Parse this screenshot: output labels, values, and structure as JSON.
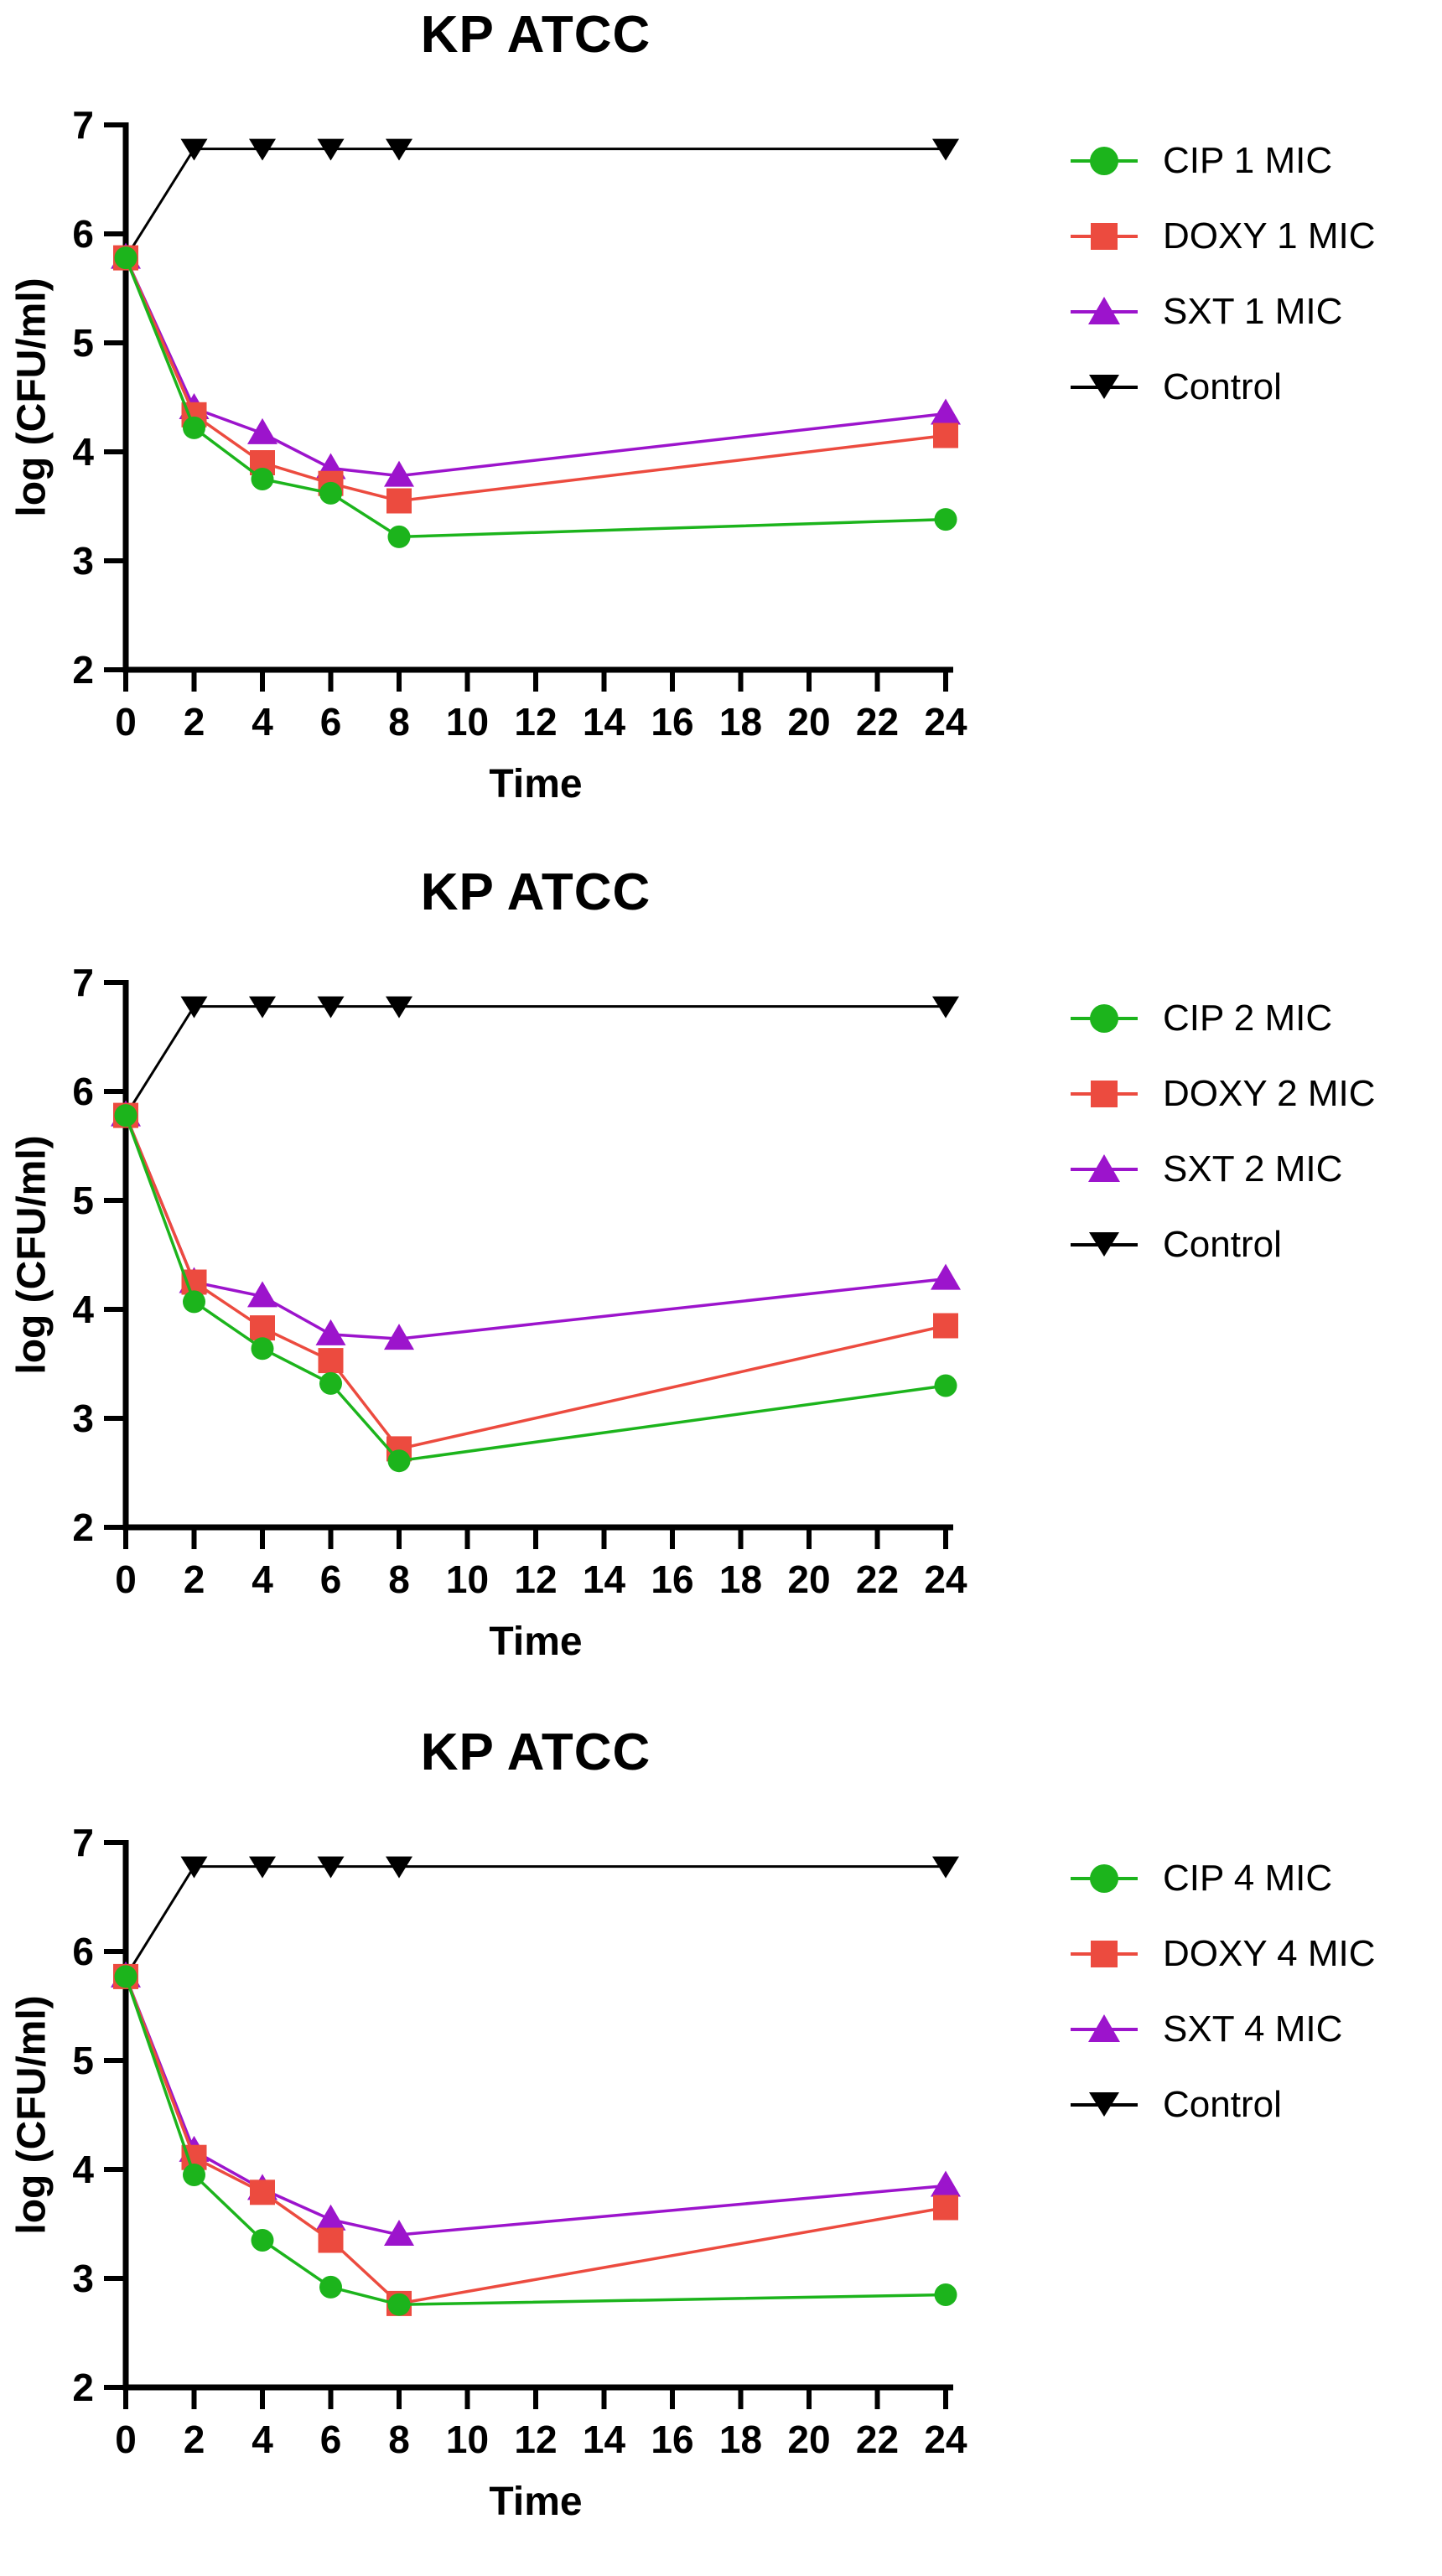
{
  "figure": {
    "background": "#FFFFFF",
    "text_color": "#000000"
  },
  "chart_data": [
    {
      "type": "line",
      "title": "KP ATCC",
      "xlabel": "Time",
      "ylabel": "log (CFU/ml)",
      "x": [
        0,
        2,
        4,
        6,
        8,
        24
      ],
      "xticks": [
        0,
        2,
        4,
        6,
        8,
        10,
        12,
        14,
        16,
        18,
        20,
        22,
        24
      ],
      "yticks": [
        2,
        3,
        4,
        5,
        6,
        7
      ],
      "ylim": [
        2,
        7
      ],
      "grid": false,
      "legend_position": "right",
      "series": [
        {
          "name": "CIP 1 MIC",
          "marker": "circle",
          "color": "#1CB41C",
          "values": [
            5.78,
            4.22,
            3.75,
            3.62,
            3.22,
            3.38
          ]
        },
        {
          "name": "DOXY 1 MIC",
          "marker": "square",
          "color": "#EC4B3F",
          "values": [
            5.78,
            4.34,
            3.9,
            3.71,
            3.55,
            4.15
          ]
        },
        {
          "name": "SXT 1 MIC",
          "marker": "triangle-up",
          "color": "#9C14CC",
          "values": [
            5.78,
            4.4,
            4.17,
            3.85,
            3.78,
            4.35
          ]
        },
        {
          "name": "Control",
          "marker": "triangle-down",
          "color": "#000000",
          "values": [
            5.78,
            6.78,
            6.78,
            6.78,
            6.78,
            6.78
          ],
          "first_marker": false
        }
      ]
    },
    {
      "type": "line",
      "title": "KP ATCC",
      "xlabel": "Time",
      "ylabel": "log (CFU/ml)",
      "x": [
        0,
        2,
        4,
        6,
        8,
        24
      ],
      "xticks": [
        0,
        2,
        4,
        6,
        8,
        10,
        12,
        14,
        16,
        18,
        20,
        22,
        24
      ],
      "yticks": [
        2,
        3,
        4,
        5,
        6,
        7
      ],
      "ylim": [
        2,
        7
      ],
      "grid": false,
      "legend_position": "right",
      "series": [
        {
          "name": "CIP 2 MIC",
          "marker": "circle",
          "color": "#1CB41C",
          "values": [
            5.78,
            4.07,
            3.64,
            3.32,
            2.61,
            3.3
          ]
        },
        {
          "name": "DOXY 2 MIC",
          "marker": "square",
          "color": "#EC4B3F",
          "values": [
            5.78,
            4.25,
            3.83,
            3.53,
            2.72,
            3.85
          ]
        },
        {
          "name": "SXT 2 MIC",
          "marker": "triangle-up",
          "color": "#9C14CC",
          "values": [
            5.78,
            4.25,
            4.12,
            3.77,
            3.73,
            4.28
          ]
        },
        {
          "name": "Control",
          "marker": "triangle-down",
          "color": "#000000",
          "values": [
            5.78,
            6.78,
            6.78,
            6.78,
            6.78,
            6.78
          ],
          "first_marker": false
        }
      ]
    },
    {
      "type": "line",
      "title": "KP ATCC",
      "xlabel": "Time",
      "ylabel": "log (CFU/ml)",
      "x": [
        0,
        2,
        4,
        6,
        8,
        24
      ],
      "xticks": [
        0,
        2,
        4,
        6,
        8,
        10,
        12,
        14,
        16,
        18,
        20,
        22,
        24
      ],
      "yticks": [
        2,
        3,
        4,
        5,
        6,
        7
      ],
      "ylim": [
        2,
        7
      ],
      "grid": false,
      "legend_position": "right",
      "series": [
        {
          "name": "CIP 4 MIC",
          "marker": "circle",
          "color": "#1CB41C",
          "values": [
            5.77,
            3.95,
            3.35,
            2.92,
            2.76,
            2.85
          ]
        },
        {
          "name": "DOXY 4 MIC",
          "marker": "square",
          "color": "#EC4B3F",
          "values": [
            5.77,
            4.11,
            3.79,
            3.35,
            2.77,
            3.65
          ]
        },
        {
          "name": "SXT 4 MIC",
          "marker": "triangle-up",
          "color": "#9C14CC",
          "values": [
            5.77,
            4.17,
            3.82,
            3.54,
            3.4,
            3.85
          ]
        },
        {
          "name": "Control",
          "marker": "triangle-down",
          "color": "#000000",
          "values": [
            5.77,
            6.78,
            6.78,
            6.78,
            6.78,
            6.78
          ],
          "first_marker": false
        }
      ]
    }
  ]
}
